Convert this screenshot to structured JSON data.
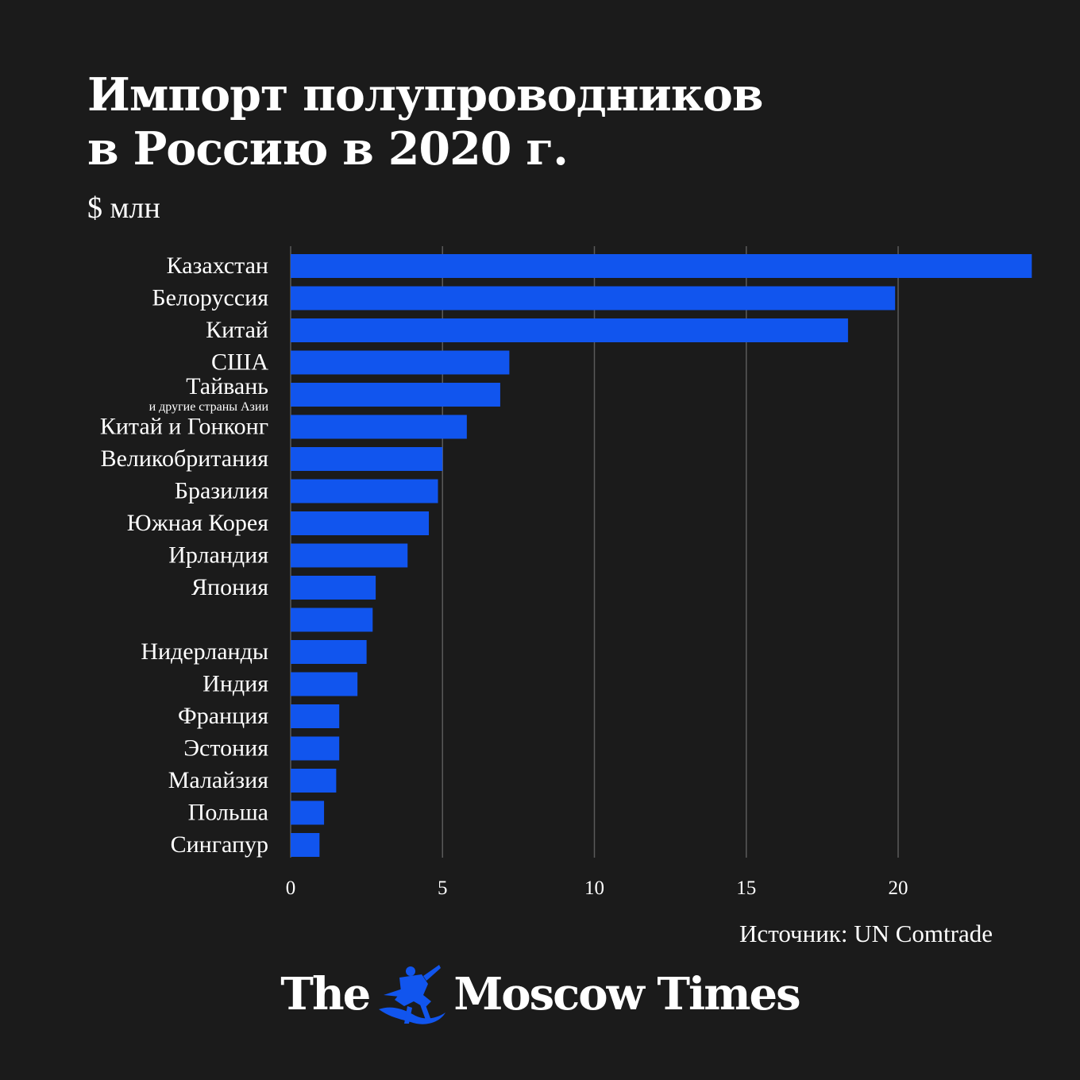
{
  "header": {
    "title_line1": "Импорт полупроводников",
    "title_line2": "в Россию в 2020 г.",
    "unit": "$ млн"
  },
  "chart_data": {
    "type": "bar",
    "orientation": "horizontal",
    "categories": [
      {
        "label": "Казахстан",
        "sub": ""
      },
      {
        "label": "Белоруссия",
        "sub": ""
      },
      {
        "label": "Китай",
        "sub": ""
      },
      {
        "label": "США",
        "sub": ""
      },
      {
        "label": "Тайвань",
        "sub": "и другие страны Азии"
      },
      {
        "label": "Китай и Гонконг",
        "sub": ""
      },
      {
        "label": "Великобритания",
        "sub": ""
      },
      {
        "label": "Бразилия",
        "sub": ""
      },
      {
        "label": "Южная Корея",
        "sub": ""
      },
      {
        "label": "Ирландия",
        "sub": ""
      },
      {
        "label": "Япония",
        "sub": ""
      },
      {
        "label": "",
        "sub": ""
      },
      {
        "label": "Нидерланды",
        "sub": ""
      },
      {
        "label": "Индия",
        "sub": ""
      },
      {
        "label": "Франция",
        "sub": ""
      },
      {
        "label": "Эстония",
        "sub": ""
      },
      {
        "label": "Малайзия",
        "sub": ""
      },
      {
        "label": "Польша",
        "sub": ""
      },
      {
        "label": "Сингапур",
        "sub": ""
      }
    ],
    "values": [
      24.4,
      19.9,
      18.35,
      7.2,
      6.9,
      5.8,
      5.0,
      4.85,
      4.55,
      3.85,
      2.8,
      2.7,
      2.5,
      2.2,
      1.6,
      1.6,
      1.5,
      1.1,
      0.95
    ],
    "xticks": [
      0,
      5,
      10,
      15,
      20
    ],
    "xlim": [
      0,
      24.4
    ],
    "grid": true,
    "bar_color": "#1155ee"
  },
  "footer": {
    "source": "Источник: UN Comtrade",
    "logo_left": "The",
    "logo_right": "Moscow Times",
    "emblem_icon": "st-george-emblem-icon"
  }
}
